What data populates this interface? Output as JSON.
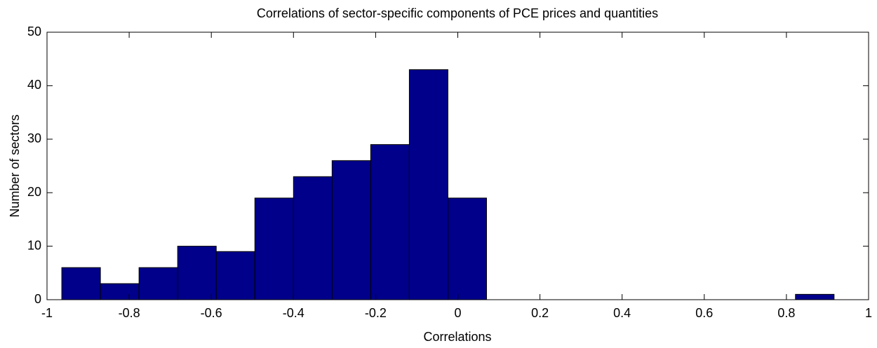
{
  "chart_data": {
    "type": "histogram",
    "title": "Correlations of sector-specific components of PCE prices and quantities",
    "xlabel": "Correlations",
    "ylabel": "Number of sectors",
    "bins": [
      -0.964,
      -0.87,
      -0.776,
      -0.682,
      -0.588,
      -0.494,
      -0.4,
      -0.306,
      -0.212,
      -0.118,
      -0.024,
      0.07,
      0.164,
      0.258,
      0.352,
      0.446,
      0.54,
      0.634,
      0.728,
      0.822,
      0.916
    ],
    "counts": [
      6,
      3,
      6,
      10,
      9,
      19,
      23,
      26,
      29,
      43,
      19,
      0,
      0,
      0,
      0,
      0,
      0,
      0,
      0,
      1
    ],
    "color": "#00008b",
    "edgecolor": "#000000",
    "xlim": [
      -1,
      1
    ],
    "xticks": [
      -1,
      -0.8,
      -0.6,
      -0.4,
      -0.2,
      0,
      0.2,
      0.4,
      0.6,
      0.8,
      1
    ],
    "ylim": [
      0,
      50
    ],
    "yticks": [
      0,
      10,
      20,
      30,
      40,
      50
    ]
  }
}
